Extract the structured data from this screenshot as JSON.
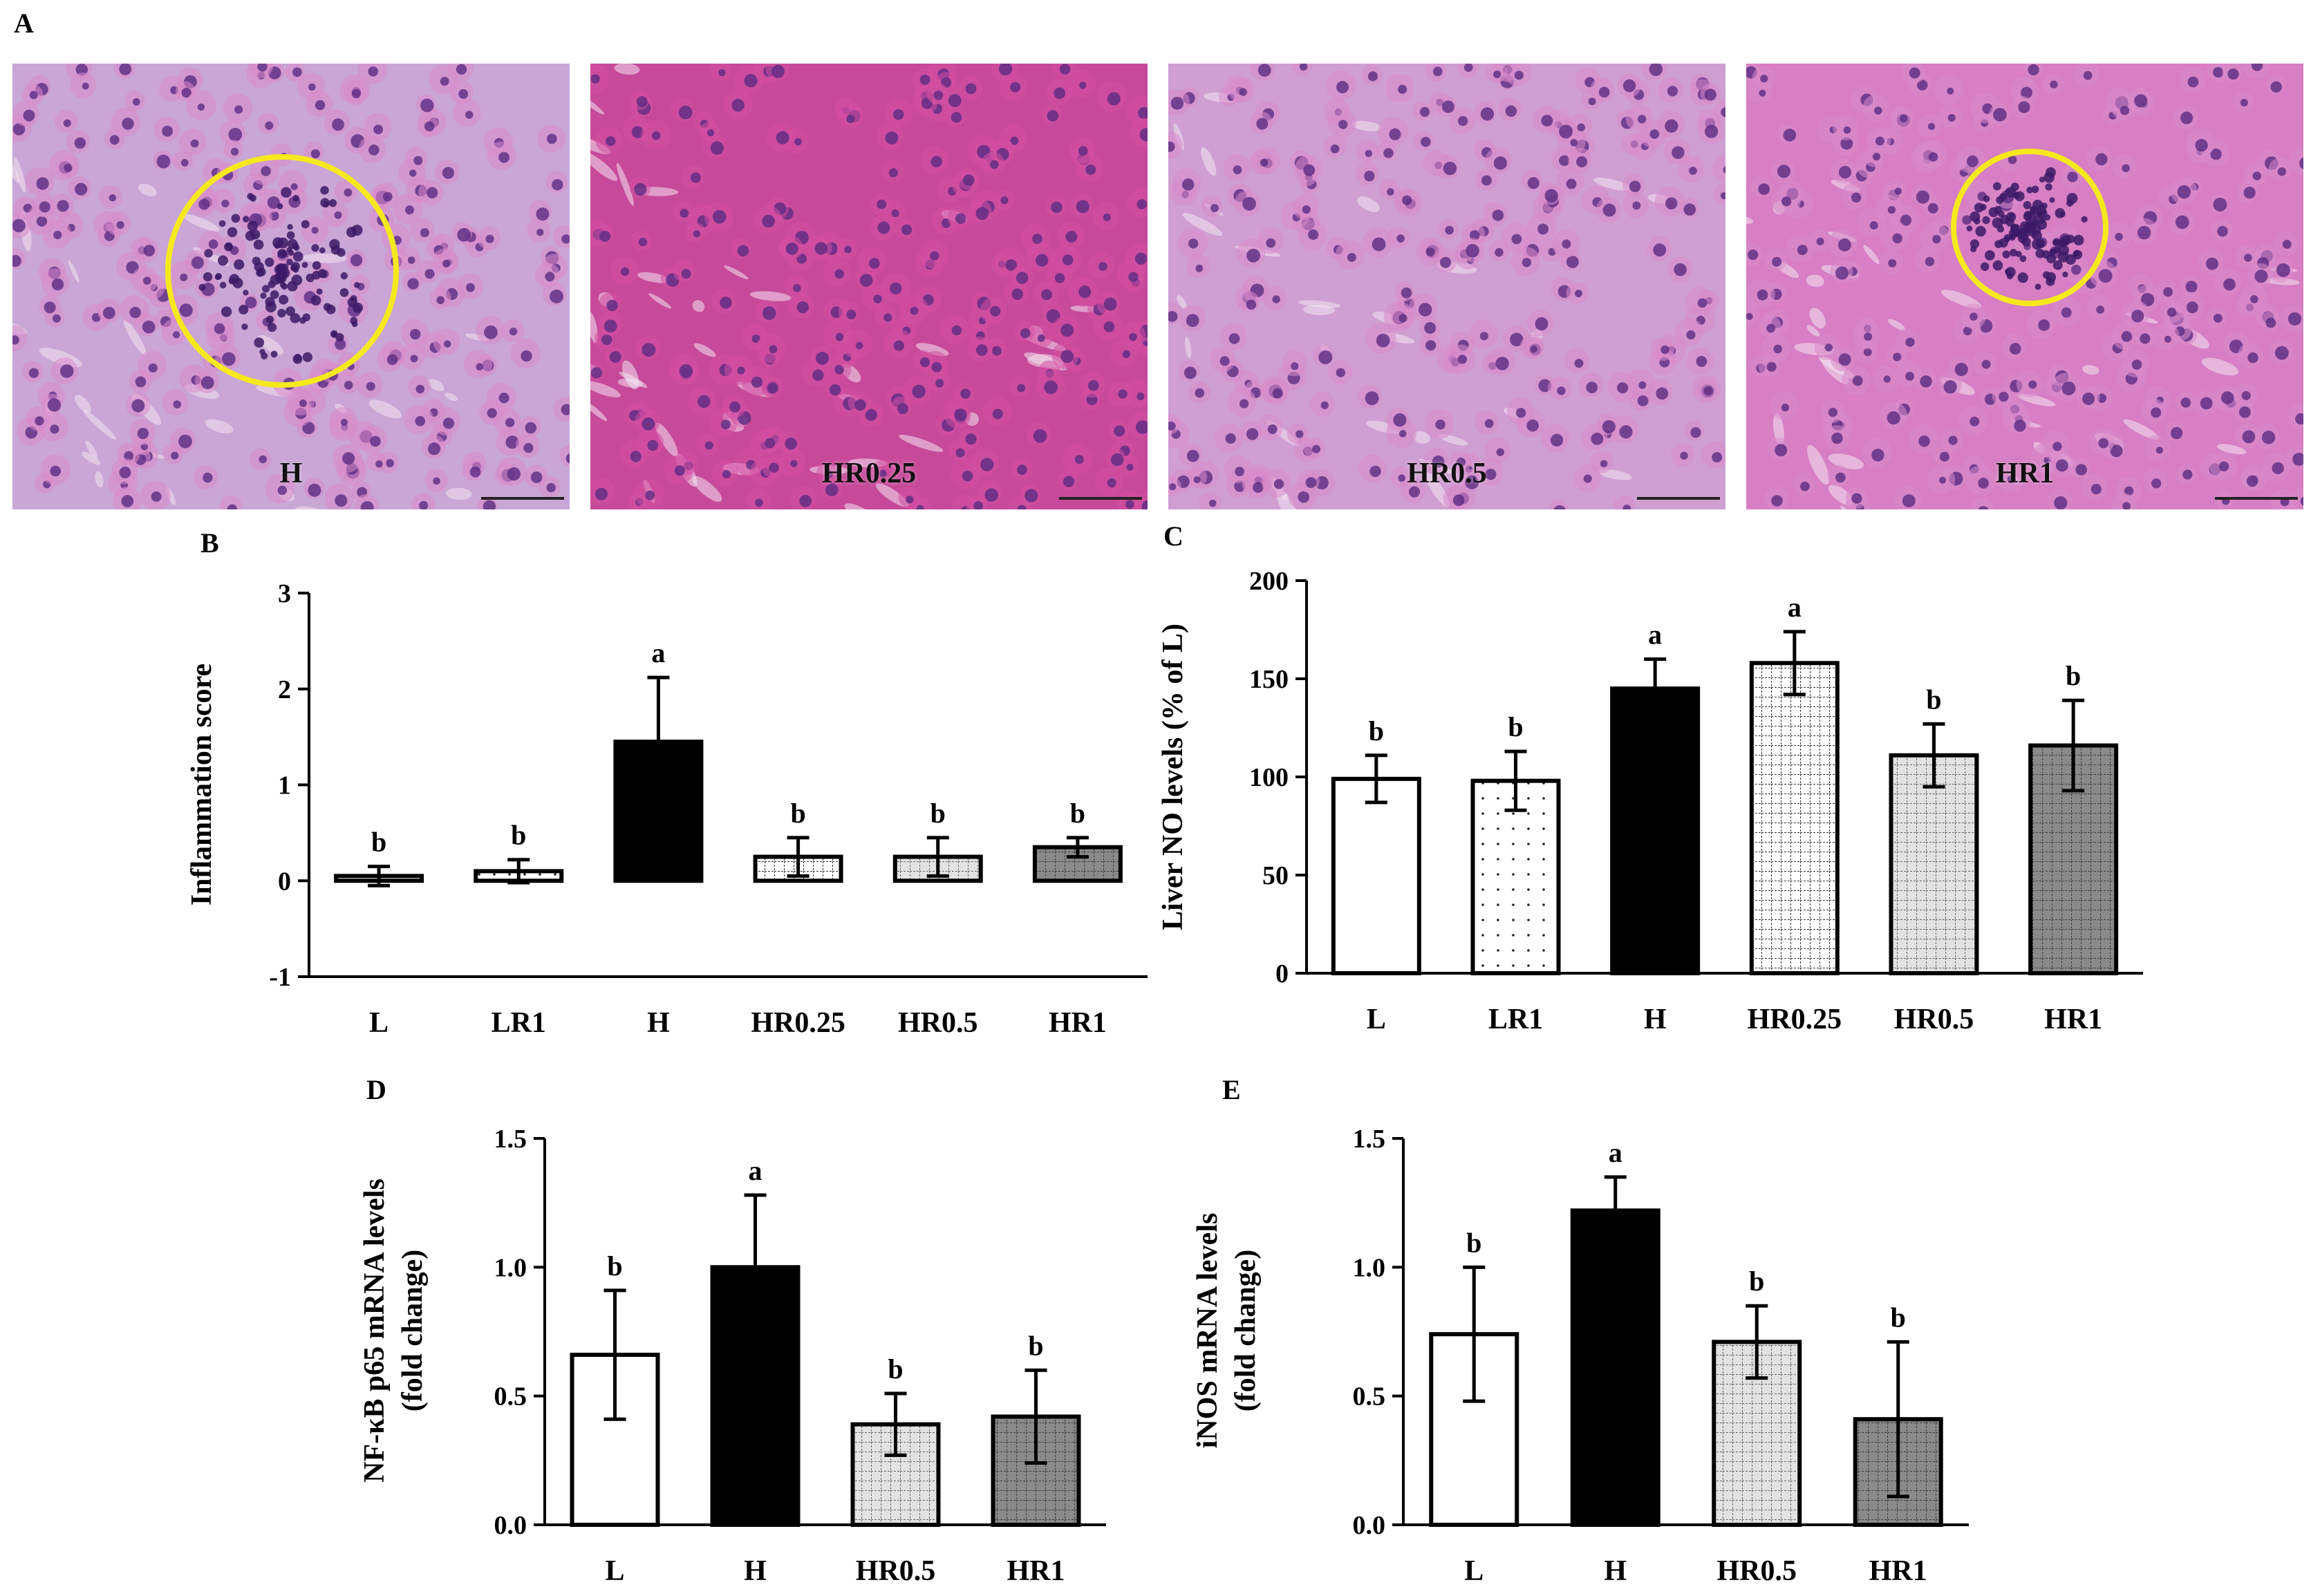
{
  "panel_a": {
    "letter": "A",
    "images": [
      {
        "label": "H",
        "circle": true
      },
      {
        "label": "HR0.25",
        "circle": false
      },
      {
        "label": "HR0.5",
        "circle": false
      },
      {
        "label": "HR1",
        "circle": true
      }
    ]
  },
  "colors": {
    "tissue_light": "#d77ec4",
    "tissue_dark": "#c74a9a",
    "nucleus": "#5b2c82",
    "circle": "#f5e91e"
  },
  "chart_data": [
    {
      "id": "B",
      "letter": "B",
      "type": "bar",
      "ylabel": "Inflammation score",
      "ylim": [
        -1,
        3
      ],
      "yticks": [
        -1,
        0,
        1,
        2,
        3
      ],
      "ytick_labels": [
        "-1",
        "0",
        "1",
        "2",
        "3"
      ],
      "categories": [
        "L",
        "LR1",
        "H",
        "HR0.25",
        "HR0.5",
        "HR1"
      ],
      "values": [
        0.05,
        0.1,
        1.45,
        0.25,
        0.25,
        0.35
      ],
      "errors": [
        0.1,
        0.12,
        0.67,
        0.2,
        0.2,
        0.1
      ],
      "letters": [
        "b",
        "b",
        "a",
        "b",
        "b",
        "b"
      ],
      "fills": [
        "white",
        "dots",
        "black",
        "grid-white",
        "grid-light",
        "grid-dark"
      ]
    },
    {
      "id": "C",
      "letter": "C",
      "type": "bar",
      "ylabel": "Liver NO levels (% of L)",
      "ylim": [
        0,
        200
      ],
      "yticks": [
        0,
        50,
        100,
        150,
        200
      ],
      "ytick_labels": [
        "0",
        "50",
        "100",
        "150",
        "200"
      ],
      "categories": [
        "L",
        "LR1",
        "H",
        "HR0.25",
        "HR0.5",
        "HR1"
      ],
      "values": [
        99,
        98,
        145,
        158,
        111,
        116
      ],
      "errors": [
        12,
        15,
        15,
        16,
        16,
        23
      ],
      "letters": [
        "b",
        "b",
        "a",
        "a",
        "b",
        "b"
      ],
      "fills": [
        "white",
        "dots",
        "black",
        "grid-white",
        "grid-light",
        "grid-dark"
      ]
    },
    {
      "id": "D",
      "letter": "D",
      "type": "bar",
      "ylabel": "NF-κB p65 mRNA levels",
      "ylabel2": "(fold change)",
      "ylim": [
        0,
        1.5
      ],
      "yticks": [
        0,
        0.5,
        1.0,
        1.5
      ],
      "ytick_labels": [
        "0.0",
        "0.5",
        "1.0",
        "1.5"
      ],
      "categories": [
        "L",
        "H",
        "HR0.5",
        "HR1"
      ],
      "values": [
        0.66,
        1.0,
        0.39,
        0.42
      ],
      "errors": [
        0.25,
        0.28,
        0.12,
        0.18
      ],
      "letters": [
        "b",
        "a",
        "b",
        "b"
      ],
      "fills": [
        "white",
        "black",
        "grid-light",
        "grid-dark"
      ]
    },
    {
      "id": "E",
      "letter": "E",
      "type": "bar",
      "ylabel": "iNOS mRNA levels",
      "ylabel2": "(fold change)",
      "ylim": [
        0,
        1.5
      ],
      "yticks": [
        0,
        0.5,
        1.0,
        1.5
      ],
      "ytick_labels": [
        "0.0",
        "0.5",
        "1.0",
        "1.5"
      ],
      "categories": [
        "L",
        "H",
        "HR0.5",
        "HR1"
      ],
      "values": [
        0.74,
        1.22,
        0.71,
        0.41
      ],
      "errors": [
        0.26,
        0.13,
        0.14,
        0.3
      ],
      "letters": [
        "b",
        "a",
        "b",
        "b"
      ],
      "fills": [
        "white",
        "black",
        "grid-light",
        "grid-dark"
      ]
    }
  ]
}
